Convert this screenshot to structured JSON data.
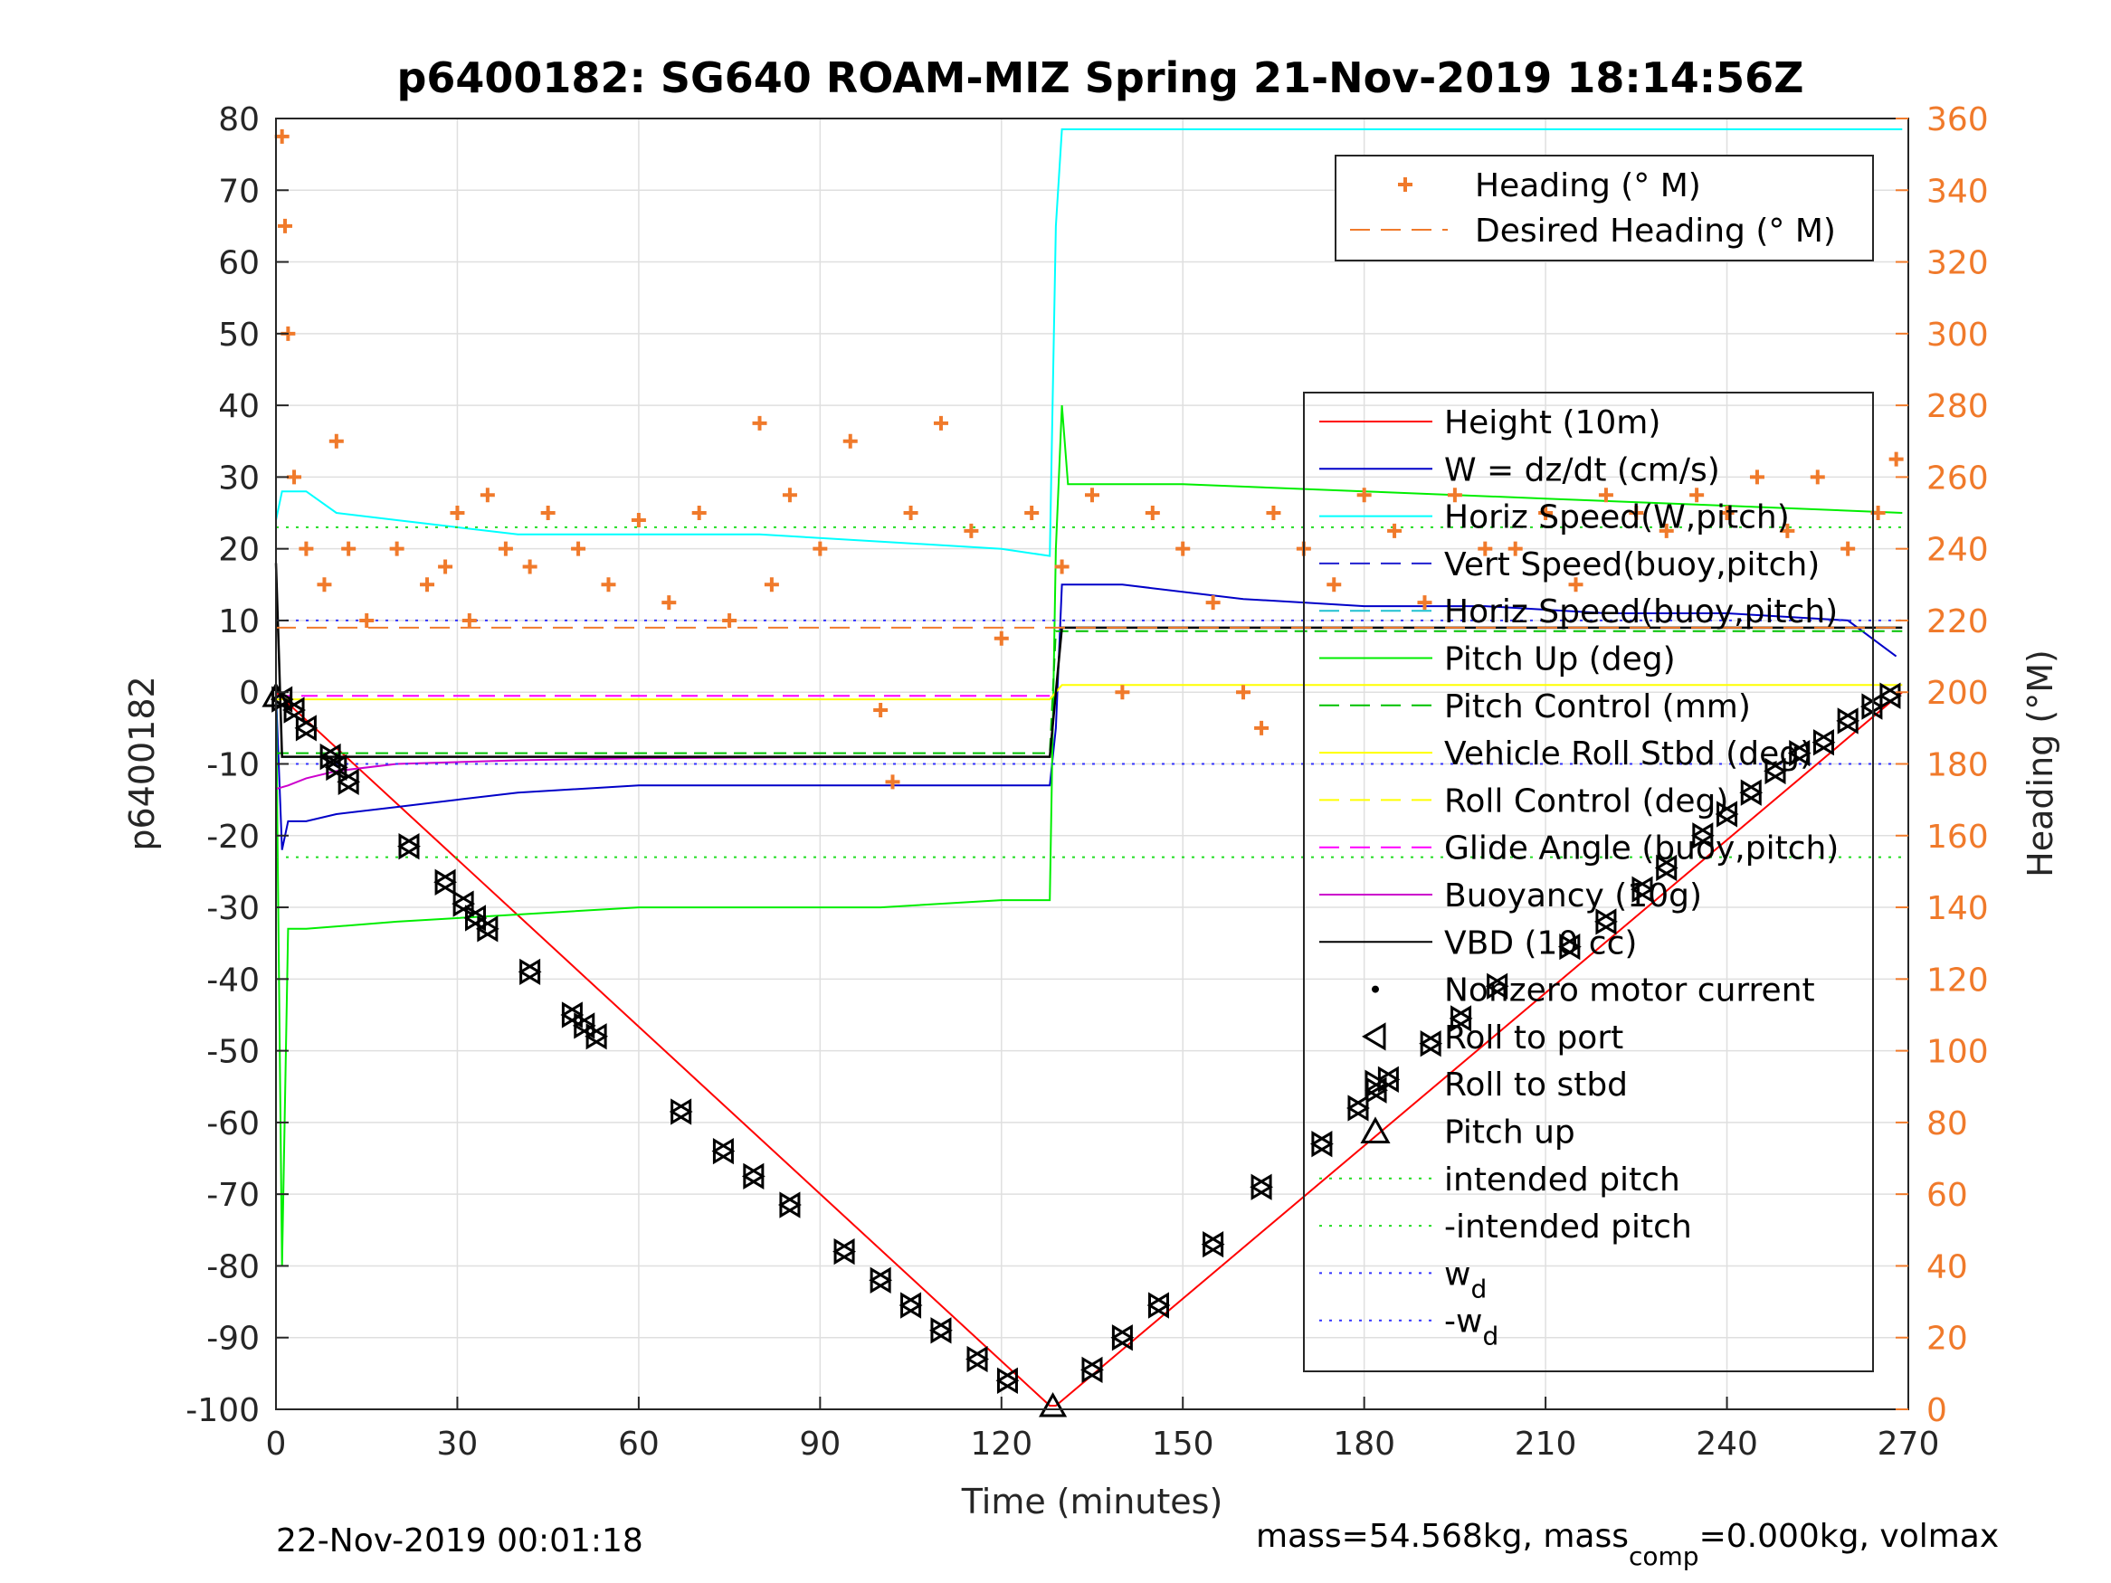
{
  "title": "p6400182: SG640 ROAM-MIZ Spring 21-Nov-2019 18:14:56Z",
  "footer": {
    "left": "22-Nov-2019 00:01:18",
    "right_prefix": "mass=54.568kg, mass",
    "right_sub": "comp",
    "right_suffix": "=0.000kg, volmax"
  },
  "colors": {
    "heading": "#f07a2b",
    "height": "#ff0000",
    "w": "#0000c8",
    "horiz_speed": "#00ffff",
    "vert_speed_buoy": "#2020d0",
    "horiz_speed_buoy": "#20c0d0",
    "pitch_up": "#00ee00",
    "pitch_control": "#00c000",
    "roll": "#ffff00",
    "glide_angle": "#ff00ff",
    "buoyancy": "#cc00cc",
    "vbd": "#000000",
    "intended_pitch": "#22dd22",
    "wd": "#3333ff"
  },
  "chart_data": {
    "type": "line",
    "title": "p6400182: SG640 ROAM-MIZ Spring 21-Nov-2019 18:14:56Z",
    "xlabel": "Time (minutes)",
    "ylabel": "p6400182",
    "y2label": "Heading (°M)",
    "xlim": [
      0,
      270
    ],
    "ylim": [
      -100,
      80
    ],
    "y2lim": [
      0,
      360
    ],
    "xticks": [
      "0",
      "30",
      "60",
      "90",
      "120",
      "150",
      "180",
      "210",
      "240",
      "270"
    ],
    "yticks": [
      "80",
      "70",
      "60",
      "50",
      "40",
      "30",
      "20",
      "10",
      "0",
      "-10",
      "-20",
      "-30",
      "-40",
      "-50",
      "-60",
      "-70",
      "-80",
      "-90",
      "-100"
    ],
    "y2ticks": [
      "360",
      "340",
      "320",
      "300",
      "280",
      "260",
      "240",
      "220",
      "200",
      "180",
      "160",
      "140",
      "120",
      "100",
      "80",
      "60",
      "40",
      "20",
      "0"
    ],
    "grid": true,
    "legend_top": {
      "placement": "top-right",
      "entries": [
        "Heading (° M)",
        "Desired Heading (° M)"
      ]
    },
    "legend_main": {
      "placement": "right",
      "entries": [
        "Height (10m)",
        "W = dz/dt (cm/s)",
        "Horiz Speed(W,pitch)",
        "Vert Speed(buoy,pitch)",
        "Horiz Speed(buoy,pitch)",
        "Pitch Up (deg)",
        "Pitch Control (mm)",
        "Vehicle Roll Stbd (deg)",
        "Roll Control (deg)",
        "Glide Angle (buoy,pitch)",
        "Buoyancy (10g)",
        "VBD (10 cc)",
        "Nonzero motor current",
        "Roll to port",
        "Roll to stbd",
        "Pitch up",
        "intended pitch",
        "-intended pitch",
        "w",
        "-w"
      ],
      "subscript_entries": {
        "18": "d",
        "19": "d"
      }
    },
    "series": [
      {
        "name": "Height (10m)",
        "axis": "left",
        "x": [
          0,
          128,
          129,
          269
        ],
        "y": [
          0,
          -99.5,
          -99.5,
          0
        ]
      },
      {
        "name": "W = dz/dt (cm/s)",
        "axis": "left",
        "x": [
          0,
          1,
          2,
          5,
          10,
          20,
          30,
          40,
          60,
          80,
          100,
          120,
          128,
          129,
          130,
          140,
          160,
          180,
          200,
          220,
          240,
          260,
          268
        ],
        "y": [
          0,
          -22,
          -18,
          -18,
          -17,
          -16,
          -15,
          -14,
          -13,
          -13,
          -13,
          -13,
          -13,
          -5,
          15,
          15,
          13,
          12,
          12,
          11,
          11,
          10,
          5
        ]
      },
      {
        "name": "Horiz Speed(W,pitch)",
        "axis": "left",
        "x": [
          0,
          1,
          5,
          10,
          20,
          30,
          40,
          60,
          80,
          100,
          120,
          128,
          129,
          130,
          269
        ],
        "y": [
          24,
          28,
          28,
          25,
          24,
          23,
          22,
          22,
          22,
          21,
          20,
          19,
          65,
          78.5,
          78.5
        ]
      },
      {
        "name": "Pitch Up (deg)",
        "axis": "left",
        "x": [
          0,
          1,
          2,
          5,
          20,
          40,
          60,
          80,
          100,
          120,
          128,
          129,
          130,
          131,
          150,
          180,
          210,
          240,
          269
        ],
        "y": [
          0,
          -80,
          -33,
          -33,
          -32,
          -31,
          -30,
          -30,
          -30,
          -29,
          -29,
          20,
          40,
          29,
          29,
          28,
          27,
          26,
          25
        ]
      },
      {
        "name": "Pitch Control (mm)",
        "axis": "left",
        "x": [
          0,
          128,
          129,
          269
        ],
        "y": [
          -8.5,
          -8.5,
          8.5,
          8.5
        ]
      },
      {
        "name": "Vehicle Roll Stbd (deg)",
        "axis": "left",
        "x": [
          0,
          30,
          60,
          90,
          120,
          128,
          130,
          160,
          200,
          240,
          269
        ],
        "y": [
          -1,
          -1,
          -1,
          -1,
          -1,
          -1,
          1,
          1,
          1,
          1,
          1
        ]
      },
      {
        "name": "Glide Angle (buoy,pitch)",
        "axis": "left",
        "x": [
          0,
          128
        ],
        "y": [
          -0.5,
          -0.5
        ]
      },
      {
        "name": "Buoyancy (10g)",
        "axis": "left",
        "x": [
          0,
          2,
          5,
          10,
          20,
          40,
          60,
          80,
          100,
          120,
          128
        ],
        "y": [
          -13.5,
          -13,
          -12,
          -11,
          -10,
          -9.5,
          -9.2,
          -9.1,
          -9,
          -9,
          -9
        ]
      },
      {
        "name": "VBD (10 cc)",
        "axis": "left",
        "x": [
          0,
          0.5,
          1,
          128,
          129,
          130,
          269
        ],
        "y": [
          18,
          5,
          -9,
          -9,
          0,
          9,
          9
        ]
      },
      {
        "name": "intended pitch",
        "axis": "left",
        "x": [
          0,
          269
        ],
        "y": [
          23,
          23
        ]
      },
      {
        "name": "-intended pitch",
        "axis": "left",
        "x": [
          0,
          269
        ],
        "y": [
          -23,
          -23
        ]
      },
      {
        "name": "w_d",
        "axis": "left",
        "x": [
          0,
          269
        ],
        "y": [
          10,
          10
        ]
      },
      {
        "name": "-w_d",
        "axis": "left",
        "x": [
          0,
          269
        ],
        "y": [
          -10,
          -10
        ]
      },
      {
        "name": "Desired Heading (° M)",
        "axis": "right",
        "x": [
          0,
          269
        ],
        "y": [
          218,
          218
        ]
      },
      {
        "name": "Heading (° M)",
        "axis": "right",
        "type": "scatter",
        "x": [
          1,
          1.5,
          2,
          3,
          5,
          8,
          10,
          12,
          15,
          20,
          25,
          28,
          30,
          32,
          35,
          38,
          42,
          45,
          50,
          55,
          60,
          65,
          70,
          75,
          80,
          82,
          85,
          90,
          95,
          100,
          102,
          105,
          110,
          115,
          120,
          125,
          130,
          135,
          140,
          145,
          150,
          155,
          160,
          163,
          165,
          170,
          175,
          180,
          185,
          190,
          195,
          200,
          205,
          210,
          215,
          220,
          225,
          230,
          235,
          240,
          245,
          250,
          255,
          260,
          265,
          268
        ],
        "y": [
          355,
          330,
          300,
          260,
          240,
          230,
          270,
          240,
          220,
          240,
          230,
          235,
          250,
          220,
          255,
          240,
          235,
          250,
          240,
          230,
          248,
          225,
          250,
          220,
          275,
          230,
          255,
          240,
          270,
          195,
          175,
          250,
          275,
          245,
          215,
          250,
          235,
          255,
          200,
          250,
          240,
          225,
          200,
          190,
          250,
          240,
          230,
          255,
          245,
          225,
          255,
          240,
          240,
          250,
          230,
          255,
          250,
          245,
          255,
          250,
          260,
          245,
          260,
          240,
          250,
          265
        ]
      },
      {
        "name": "Roll to port / Roll to stbd",
        "axis": "left",
        "type": "markers",
        "x": [
          1,
          3,
          5,
          9,
          10,
          12,
          22,
          28,
          31,
          33,
          35,
          42,
          49,
          51,
          53,
          67,
          74,
          79,
          85,
          94,
          100,
          105,
          110,
          116,
          121,
          135,
          140,
          146,
          155,
          163,
          173,
          179,
          182,
          184,
          191,
          196,
          202,
          214,
          220,
          226,
          230,
          236,
          240,
          244,
          248,
          252,
          256,
          260,
          264,
          267
        ],
        "y": [
          -1,
          -2.5,
          -5,
          -9,
          -10.5,
          -12.5,
          -21.5,
          -26.5,
          -29.5,
          -31.5,
          -33,
          -39,
          -45,
          -46.5,
          -48,
          -58.5,
          -64,
          -67.5,
          -71.5,
          -78,
          -82,
          -85.5,
          -89,
          -93,
          -96,
          -94.5,
          -90,
          -85.5,
          -77,
          -69,
          -63,
          -58,
          -55.5,
          -54,
          -49,
          -45.5,
          -41,
          -35.5,
          -32,
          -27.5,
          -24.5,
          -20,
          -17,
          -14,
          -11,
          -8.5,
          -7,
          -4,
          -2,
          -0.5
        ]
      },
      {
        "name": "Pitch up",
        "axis": "left",
        "type": "markers",
        "x": [
          0,
          128.5
        ],
        "y": [
          -0.5,
          -99.5
        ]
      }
    ]
  }
}
